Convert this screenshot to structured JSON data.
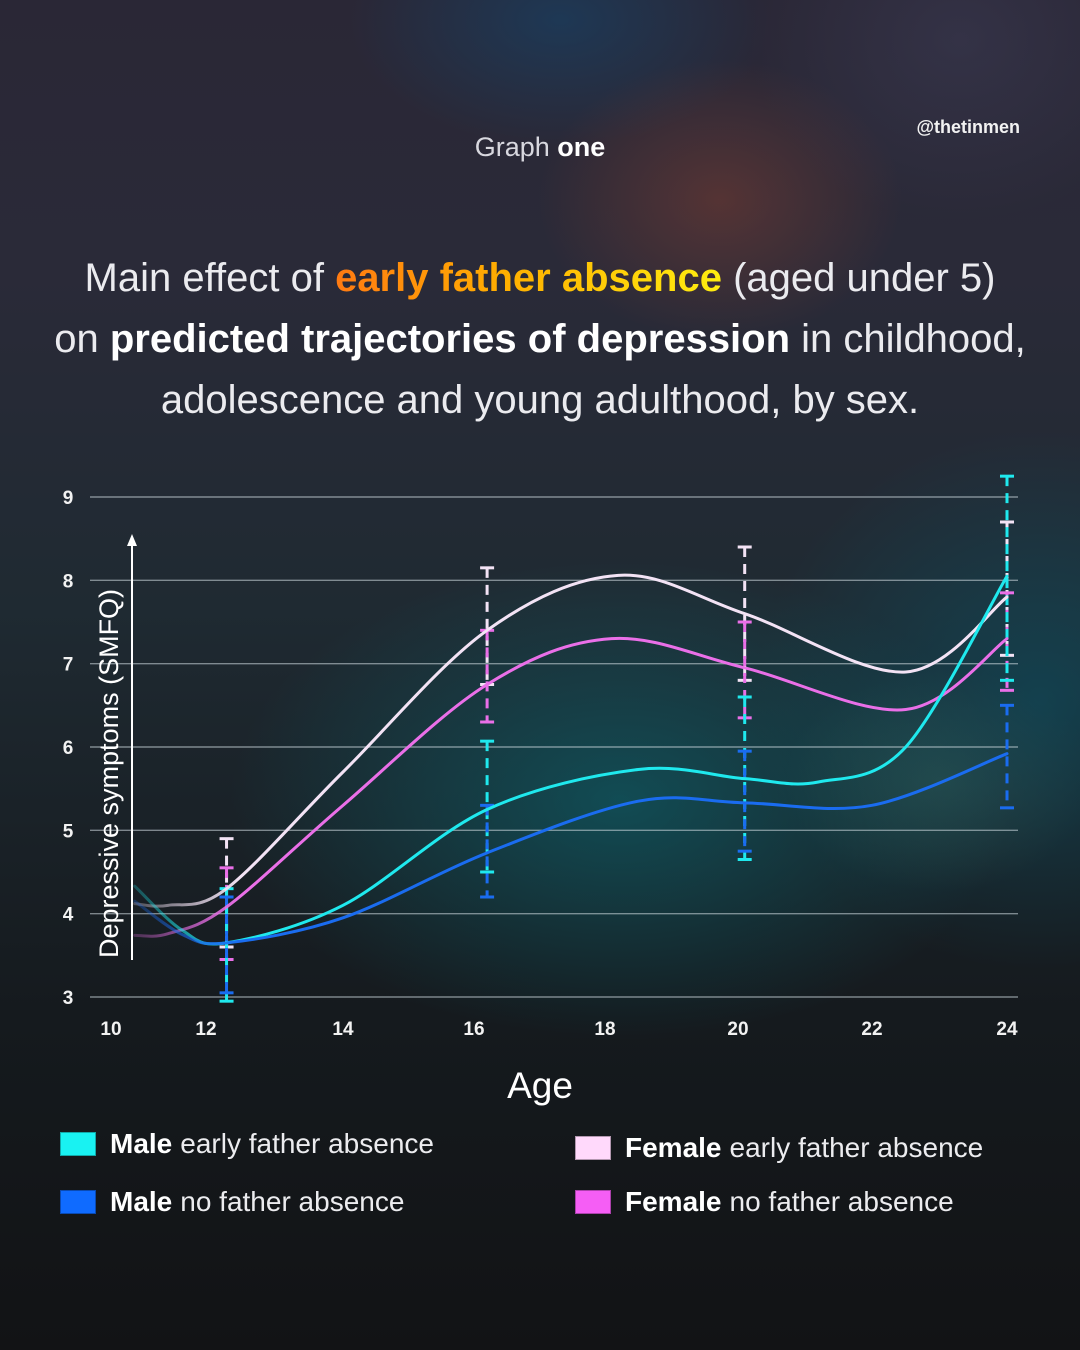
{
  "header": {
    "handle": "@thetinmen",
    "kicker_light": "Graph",
    "kicker_bold": "one"
  },
  "title": {
    "line1_pre": "Main effect of",
    "line1_highlight": "early father absence",
    "line1_post": "(aged under 5)",
    "line2_pre": "on",
    "line2_bold": "predicted trajectories of depression",
    "line2_post": "in childhood,",
    "line3": "adolescence and young adulthood, by sex."
  },
  "legend": [
    {
      "bold": "Male",
      "rest": "early father absence",
      "color": "#19f2f2"
    },
    {
      "bold": "Male",
      "rest": "no father absence",
      "color": "#0f6bff"
    },
    {
      "bold": "Female",
      "rest": "early father absence",
      "color": "#ffd9fb"
    },
    {
      "bold": "Female",
      "rest": "no father absence",
      "color": "#f55ef5"
    }
  ],
  "chart_data": {
    "type": "line",
    "title": "Main effect of early father absence (aged under 5) on predicted trajectories of depression in childhood, adolescence and young adulthood, by sex.",
    "xlabel": "Age",
    "ylabel": "Depressive symptoms (SMFQ)",
    "xticks": [
      10,
      12,
      14,
      16,
      18,
      20,
      22,
      24
    ],
    "yticks": [
      3,
      4,
      5,
      6,
      7,
      8,
      9
    ],
    "xlim": [
      10,
      24
    ],
    "ylim": [
      3,
      9
    ],
    "grid": "horizontal",
    "legend_position": "bottom",
    "measurement_ages": [
      12.3,
      16.2,
      20.1,
      24
    ],
    "series": [
      {
        "name": "Female early father absence",
        "color": "#f3e3f5",
        "x": [
          10.5,
          11.2,
          12.3,
          14,
          16.2,
          18.2,
          20.1,
          22.5,
          24
        ],
        "y": [
          4.12,
          4.1,
          4.3,
          5.7,
          7.4,
          8.06,
          7.6,
          6.9,
          7.8
        ],
        "error_bars": [
          {
            "age": 12.3,
            "upper": 4.9,
            "lower": 3.6
          },
          {
            "age": 16.2,
            "upper": 8.15,
            "lower": 6.75
          },
          {
            "age": 20.1,
            "upper": 8.4,
            "lower": 6.8
          },
          {
            "age": 24,
            "upper": 8.7,
            "lower": 7.1
          }
        ]
      },
      {
        "name": "Female no father absence",
        "color": "#ea6fe8",
        "x": [
          10.5,
          11.2,
          12.3,
          14,
          16.2,
          18.1,
          20.1,
          22.5,
          24
        ],
        "y": [
          3.74,
          3.76,
          4.08,
          5.3,
          6.75,
          7.3,
          6.95,
          6.45,
          7.3
        ],
        "error_bars": [
          {
            "age": 12.3,
            "upper": 4.55,
            "lower": 3.45
          },
          {
            "age": 16.2,
            "upper": 7.4,
            "lower": 6.3
          },
          {
            "age": 20.1,
            "upper": 7.5,
            "lower": 6.35
          },
          {
            "age": 24,
            "upper": 7.85,
            "lower": 6.68
          }
        ]
      },
      {
        "name": "Male early father absence",
        "color": "#1fe9ee",
        "x": [
          10.5,
          11.5,
          12.3,
          14,
          16.2,
          18.5,
          20.1,
          21.2,
          22.5,
          24
        ],
        "y": [
          4.33,
          3.8,
          3.65,
          4.1,
          5.25,
          5.73,
          5.62,
          5.58,
          6.0,
          8.05
        ],
        "error_bars": [
          {
            "age": 12.3,
            "upper": 4.3,
            "lower": 2.95
          },
          {
            "age": 16.2,
            "upper": 6.07,
            "lower": 4.5
          },
          {
            "age": 20.1,
            "upper": 6.6,
            "lower": 4.65
          },
          {
            "age": 24,
            "upper": 9.25,
            "lower": 6.8
          }
        ]
      },
      {
        "name": "Male no father absence",
        "color": "#1a6cf0",
        "x": [
          10.5,
          11.5,
          12.3,
          14,
          16.2,
          18.5,
          20.1,
          22,
          24
        ],
        "y": [
          4.15,
          3.75,
          3.65,
          3.95,
          4.73,
          5.35,
          5.33,
          5.3,
          5.92
        ],
        "error_bars": [
          {
            "age": 12.3,
            "upper": 4.2,
            "lower": 3.05
          },
          {
            "age": 16.2,
            "upper": 5.3,
            "lower": 4.2
          },
          {
            "age": 20.1,
            "upper": 5.95,
            "lower": 4.75
          },
          {
            "age": 24,
            "upper": 6.5,
            "lower": 5.27
          }
        ]
      }
    ]
  }
}
